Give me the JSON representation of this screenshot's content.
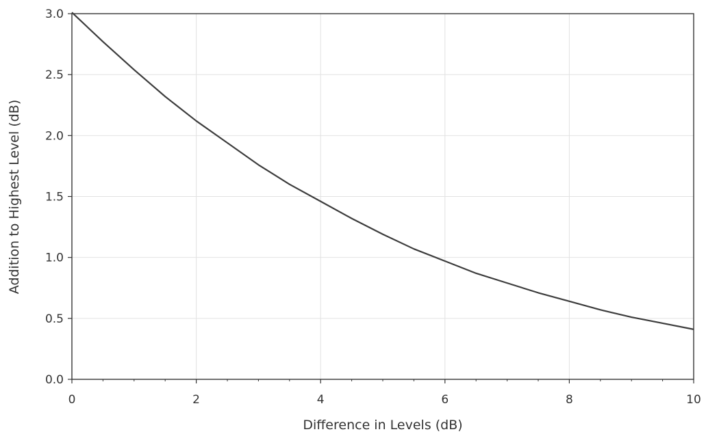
{
  "chart_data": {
    "type": "line",
    "title": "",
    "xlabel": "Difference in Levels (dB)",
    "ylabel": "Addition to Highest Level (dB)",
    "xlim": [
      0,
      10
    ],
    "ylim": [
      0,
      3.0
    ],
    "grid": true,
    "legend": "none",
    "x_ticks": [
      "0",
      "2",
      "4",
      "6",
      "8",
      "10"
    ],
    "y_ticks": [
      "0.0",
      "0.5",
      "1.0",
      "1.5",
      "2.0",
      "2.5",
      "3.0"
    ],
    "line_color": "#3c3c3c",
    "grid_color": "#e2e2e2",
    "series": [
      {
        "x": [
          0,
          0.5,
          1,
          1.5,
          2,
          2.5,
          3,
          3.5,
          4,
          4.5,
          5,
          5.5,
          6,
          6.5,
          7,
          7.5,
          8,
          8.5,
          9,
          9.5,
          10
        ],
        "values": [
          3.01,
          2.77,
          2.54,
          2.32,
          2.12,
          1.94,
          1.76,
          1.6,
          1.46,
          1.32,
          1.19,
          1.07,
          0.97,
          0.87,
          0.79,
          0.71,
          0.64,
          0.57,
          0.51,
          0.46,
          0.41
        ]
      }
    ]
  }
}
